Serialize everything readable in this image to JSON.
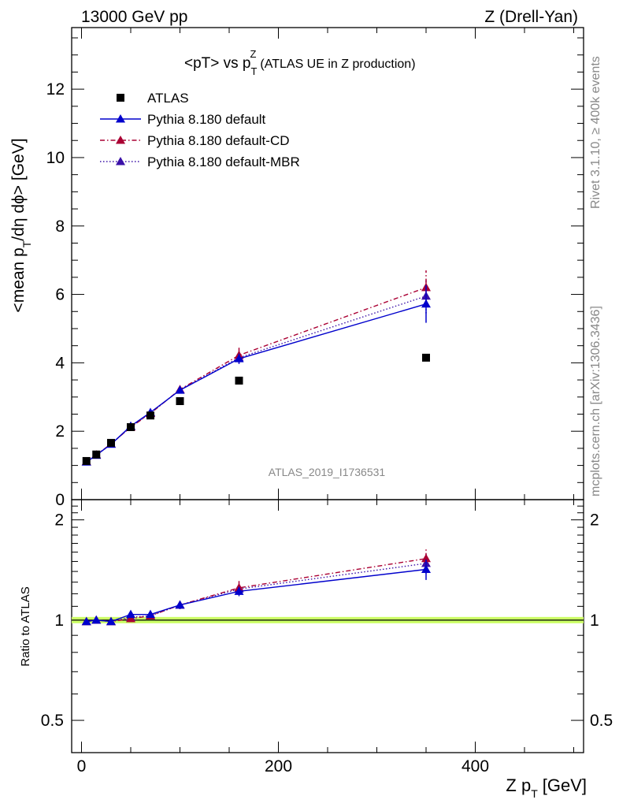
{
  "header": {
    "left": "13000 GeV pp",
    "right": "Z (Drell-Yan)"
  },
  "side_labels": {
    "rivet": "Rivet 3.1.10, ≥ 400k events",
    "mcplots": "mcplots.cern.ch [arXiv:1306.3436]"
  },
  "chart_data": [
    {
      "type": "scatter",
      "panel": "main",
      "title_main": "<pT> vs p",
      "title_sup": "Z",
      "title_sub": "T",
      "title_note": "(ATLAS UE in Z production)",
      "ylabel_pre": "<mean p",
      "ylabel_sub": "T",
      "ylabel_post": "/dη dϕ> [GeV]",
      "watermark": "ATLAS_2019_I1736531",
      "xlim": [
        -10,
        510
      ],
      "ylim": [
        0,
        13.8
      ],
      "yticks": [
        0,
        2,
        4,
        6,
        8,
        10,
        12
      ],
      "ytick_labels": [
        "0",
        "2",
        "4",
        "6",
        "8",
        "10",
        "12"
      ],
      "legend_position": "top-left",
      "x": [
        5,
        15,
        30,
        50,
        70,
        100,
        160,
        350
      ],
      "series": [
        {
          "name": "ATLAS",
          "marker": "square",
          "color": "#000000",
          "values": [
            1.13,
            1.32,
            1.66,
            2.12,
            2.46,
            2.88,
            3.48,
            4.15
          ]
        },
        {
          "name": "Pythia 8.180 default",
          "marker": "triangle",
          "line": "solid",
          "color": "#0000cc",
          "values": [
            1.1,
            1.3,
            1.62,
            2.15,
            2.55,
            3.2,
            4.12,
            5.72
          ],
          "errors": [
            0.03,
            0.03,
            0.04,
            0.06,
            0.07,
            0.09,
            0.15,
            0.55
          ]
        },
        {
          "name": "Pythia 8.180 default-CD",
          "marker": "triangle",
          "line": "dashdot",
          "color": "#aa0033",
          "values": [
            1.11,
            1.31,
            1.63,
            2.12,
            2.52,
            3.22,
            4.22,
            6.2
          ],
          "errors": [
            0.03,
            0.03,
            0.04,
            0.06,
            0.07,
            0.09,
            0.22,
            0.5
          ]
        },
        {
          "name": "Pythia 8.180 default-MBR",
          "marker": "triangle",
          "line": "dotted",
          "color": "#3a10a8",
          "values": [
            1.11,
            1.3,
            1.62,
            2.13,
            2.53,
            3.21,
            4.15,
            5.95
          ],
          "errors": [
            0.03,
            0.03,
            0.04,
            0.06,
            0.07,
            0.09,
            0.18,
            0.5
          ]
        }
      ]
    },
    {
      "type": "scatter",
      "panel": "ratio",
      "ylabel": "Ratio to ATLAS",
      "xlabel_pre": "Z p",
      "xlabel_sub": "T",
      "xlabel_post": "[GeV]",
      "scale": "log",
      "ylim": [
        0.4,
        2.3
      ],
      "yticks": [
        0.5,
        1,
        2
      ],
      "ytick_labels": [
        "0.5",
        "1",
        "2"
      ],
      "xlim": [
        -10,
        510
      ],
      "xticks": [
        0,
        200,
        400
      ],
      "xtick_labels": [
        "0",
        "200",
        "400"
      ],
      "reference_band": {
        "value": 1,
        "color": "#ccff66"
      },
      "x": [
        5,
        15,
        30,
        50,
        70,
        100,
        160,
        350
      ],
      "series": [
        {
          "name": "Pythia 8.180 default",
          "values": [
            0.99,
            1.0,
            0.99,
            1.04,
            1.04,
            1.11,
            1.22,
            1.42
          ],
          "errors": [
            0.01,
            0.01,
            0.01,
            0.02,
            0.02,
            0.03,
            0.04,
            0.1
          ]
        },
        {
          "name": "Pythia 8.180 default-CD",
          "values": [
            0.99,
            1.0,
            0.99,
            1.01,
            1.03,
            1.11,
            1.25,
            1.53
          ],
          "errors": [
            0.01,
            0.01,
            0.01,
            0.02,
            0.02,
            0.03,
            0.06,
            0.1
          ]
        },
        {
          "name": "Pythia 8.180 default-MBR",
          "values": [
            0.99,
            1.0,
            0.99,
            1.02,
            1.03,
            1.11,
            1.24,
            1.48
          ],
          "errors": [
            0.01,
            0.01,
            0.01,
            0.02,
            0.02,
            0.03,
            0.05,
            0.1
          ]
        }
      ]
    }
  ]
}
